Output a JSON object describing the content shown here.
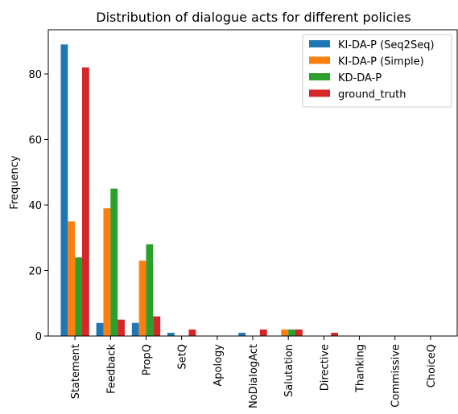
{
  "chart_data": {
    "type": "bar",
    "title": "Distribution of dialogue acts for different policies",
    "xlabel": "",
    "ylabel": "Frequency",
    "ylim": [
      0,
      93.5
    ],
    "yticks": [
      0,
      20,
      40,
      60,
      80
    ],
    "grid": false,
    "legend_position": "top-right",
    "categories": [
      "Statement",
      "Feedback",
      "PropQ",
      "SetQ",
      "Apology",
      "NoDialogAct",
      "Salutation",
      "Directive",
      "Thanking",
      "Commissive",
      "ChoiceQ"
    ],
    "series": [
      {
        "name": "KI-DA-P (Seq2Seq)",
        "color": "#1f77b4",
        "values": [
          89,
          4,
          4,
          1,
          0,
          1,
          0,
          0,
          0,
          0,
          0
        ]
      },
      {
        "name": "KI-DA-P (Simple)",
        "color": "#ff7f0e",
        "values": [
          35,
          39,
          23,
          0,
          0,
          0,
          2,
          0,
          0,
          0,
          0
        ]
      },
      {
        "name": "KD-DA-P",
        "color": "#2ca02c",
        "values": [
          24,
          45,
          28,
          0,
          0,
          0,
          2,
          0,
          0,
          0,
          0
        ]
      },
      {
        "name": "ground_truth",
        "color": "#d62728",
        "values": [
          82,
          5,
          6,
          2,
          0,
          2,
          2,
          1,
          0,
          0,
          0
        ]
      }
    ]
  }
}
